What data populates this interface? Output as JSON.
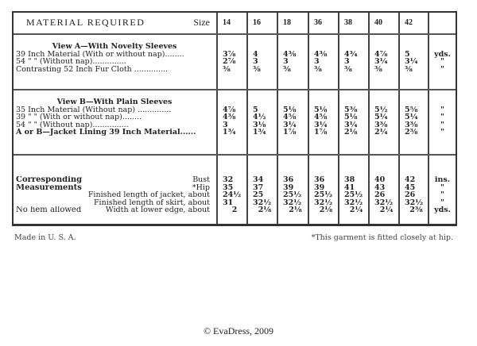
{
  "header": {
    "title": "MATERIAL REQUIRED",
    "size_label": "Size",
    "sizes": [
      "14",
      "16",
      "18",
      "36",
      "38",
      "40",
      "42"
    ]
  },
  "view_a": {
    "title": "View A—With Novelty Sleeves",
    "rows": [
      {
        "label": "39 Inch Material (With or without nap)........",
        "values": [
          "3⅞",
          "4",
          "4⅜",
          "4⅜",
          "4¾",
          "4⅞",
          "5"
        ],
        "unit": "yds."
      },
      {
        "label": "54   \"     \"      (Without nap)..............",
        "values": [
          "2⅞",
          "3",
          "3",
          "3",
          "3",
          "3¼",
          "3¼"
        ],
        "unit": "\""
      },
      {
        "label": "Contrasting 52 Inch Fur Cloth ..............",
        "values": [
          "⅜",
          "⅜",
          "⅜",
          "⅜",
          "⅜",
          "⅜",
          "⅜"
        ],
        "unit": "\""
      }
    ]
  },
  "view_b": {
    "title": "View B—With Plain Sleeves",
    "rows": [
      {
        "label": "35 Inch Material (Without nap) ..............",
        "values": [
          "4⅞",
          "5",
          "5⅛",
          "5⅛",
          "5⅜",
          "5½",
          "5⅝"
        ],
        "unit": "\""
      },
      {
        "label": "39   \"     \"     (With or without nap)........",
        "values": [
          "4⅜",
          "4½",
          "4⅝",
          "4⅝",
          "5⅛",
          "5¼",
          "5¼"
        ],
        "unit": "\""
      },
      {
        "label": "54   \"     \"     (Without nap)...............",
        "values": [
          "3",
          "3⅛",
          "3¼",
          "3¼",
          "3¼",
          "3⅜",
          "3⅜"
        ],
        "unit": "\""
      },
      {
        "label": "A or B—Jacket Lining 39 Inch Material......",
        "values": [
          "1¾",
          "1¾",
          "1⅞",
          "1⅞",
          "2⅛",
          "2¼",
          "2⅜"
        ],
        "unit": "\""
      }
    ]
  },
  "measurements": {
    "left_labels": [
      "Corresponding",
      "Measurements",
      "",
      "",
      "No hem allowed"
    ],
    "rows": [
      {
        "label": "Bust",
        "values": [
          "32",
          "34",
          "36",
          "36",
          "38",
          "40",
          "42"
        ],
        "unit": "ins."
      },
      {
        "label": "*Hip",
        "values": [
          "35",
          "37",
          "39",
          "39",
          "41",
          "43",
          "45"
        ],
        "unit": "\""
      },
      {
        "label": "Finished length of jacket, about",
        "values": [
          "24½",
          "25",
          "25½",
          "25½",
          "25½",
          "26",
          "26"
        ],
        "unit": "\""
      },
      {
        "label": "Finished length of skirt, about",
        "values": [
          "31",
          "32½",
          "32½",
          "32½",
          "32½",
          "32½",
          "32½"
        ],
        "unit": "\""
      },
      {
        "label": "Width at lower edge, about",
        "values": [
          "2",
          "2⅛",
          "2⅛",
          "2⅛",
          "2¼",
          "2¼",
          "2⅜"
        ],
        "unit": "yds."
      }
    ]
  },
  "footer": {
    "left": "Made in U. S. A.",
    "right": "*This garment is fitted closely at hip."
  },
  "copyright": "© EvaDress, 2009"
}
